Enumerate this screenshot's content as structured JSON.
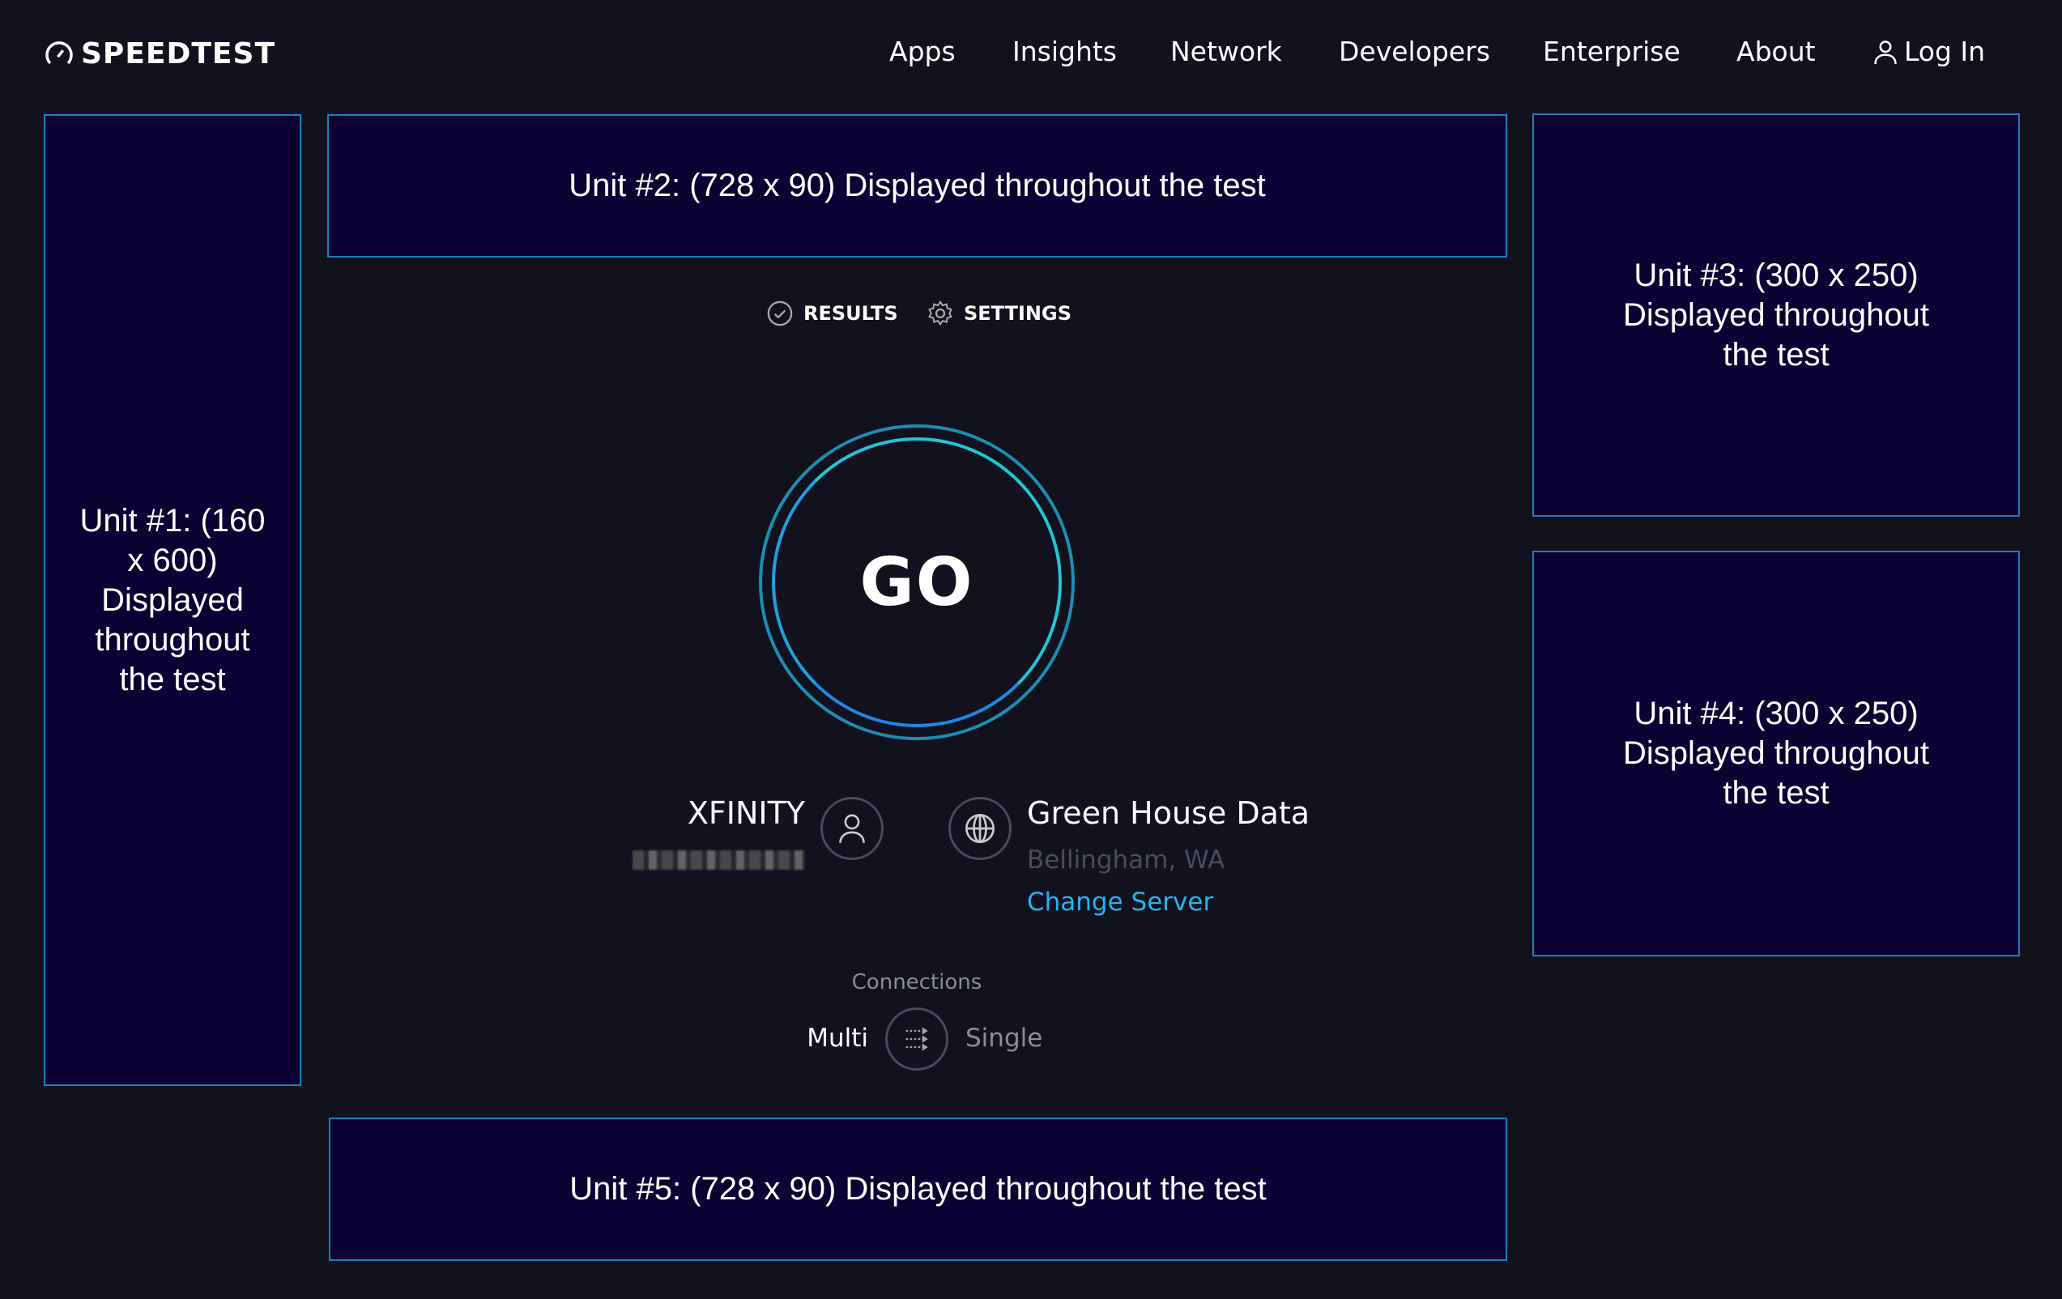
{
  "brand": {
    "name": "SPEEDTEST"
  },
  "nav": {
    "items": [
      "Apps",
      "Insights",
      "Network",
      "Developers",
      "Enterprise",
      "About"
    ],
    "login": "Log In"
  },
  "ads": {
    "unit1": "Unit #1: (160 x 600) Displayed throughout the test",
    "unit2": "Unit #2: (728 x 90) Displayed throughout the test",
    "unit3": "Unit #3: (300 x 250) Displayed throughout the test",
    "unit4": "Unit #4: (300 x 250) Displayed throughout the test",
    "unit5": "Unit #5: (728 x 90) Displayed throughout the test"
  },
  "tabs": {
    "results": "RESULTS",
    "settings": "SETTINGS"
  },
  "go": "GO",
  "isp": {
    "name": "XFINITY"
  },
  "server": {
    "name": "Green House Data",
    "location": "Bellingham, WA",
    "change": "Change Server"
  },
  "connections": {
    "label": "Connections",
    "multi": "Multi",
    "single": "Single",
    "selected": "Multi"
  },
  "colors": {
    "background": "#11121d",
    "accent": "#1fb6f5",
    "ad_border": "#1a7fc0",
    "ad_bg": "#0b0132"
  }
}
